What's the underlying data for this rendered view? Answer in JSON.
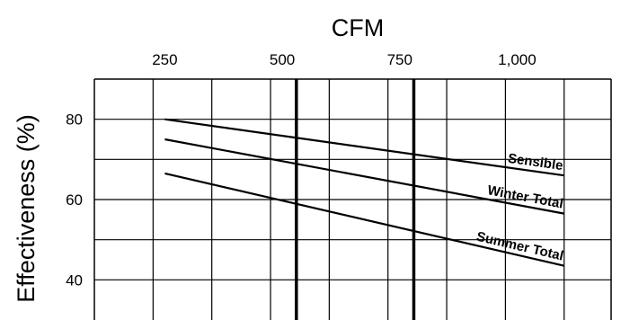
{
  "chart_data": {
    "type": "line",
    "title": "",
    "xlabel": "CFM",
    "ylabel": "Effectiveness (%)",
    "x_ticks": [
      {
        "value": 250,
        "label": "250"
      },
      {
        "value": 500,
        "label": "500"
      },
      {
        "value": 750,
        "label": "750"
      },
      {
        "value": 1000,
        "label": "1,000"
      }
    ],
    "y_ticks": [
      {
        "value": 80,
        "label": "80"
      },
      {
        "value": 60,
        "label": "60"
      },
      {
        "value": 40,
        "label": "40"
      }
    ],
    "xlim": [
      100,
      1200
    ],
    "ylim": [
      30,
      90
    ],
    "grid": true,
    "reference_lines_x": [
      530,
      780
    ],
    "series": [
      {
        "name": "Sensible",
        "x": [
          250,
          1100
        ],
        "y": [
          80,
          66
        ]
      },
      {
        "name": "Winter Total",
        "x": [
          250,
          1100
        ],
        "y": [
          75,
          56.5
        ]
      },
      {
        "name": "Summer Total",
        "x": [
          250,
          1100
        ],
        "y": [
          66.5,
          43.5
        ]
      }
    ],
    "colors": {
      "line": "#000000",
      "grid": "#000000",
      "background": "#ffffff"
    }
  }
}
